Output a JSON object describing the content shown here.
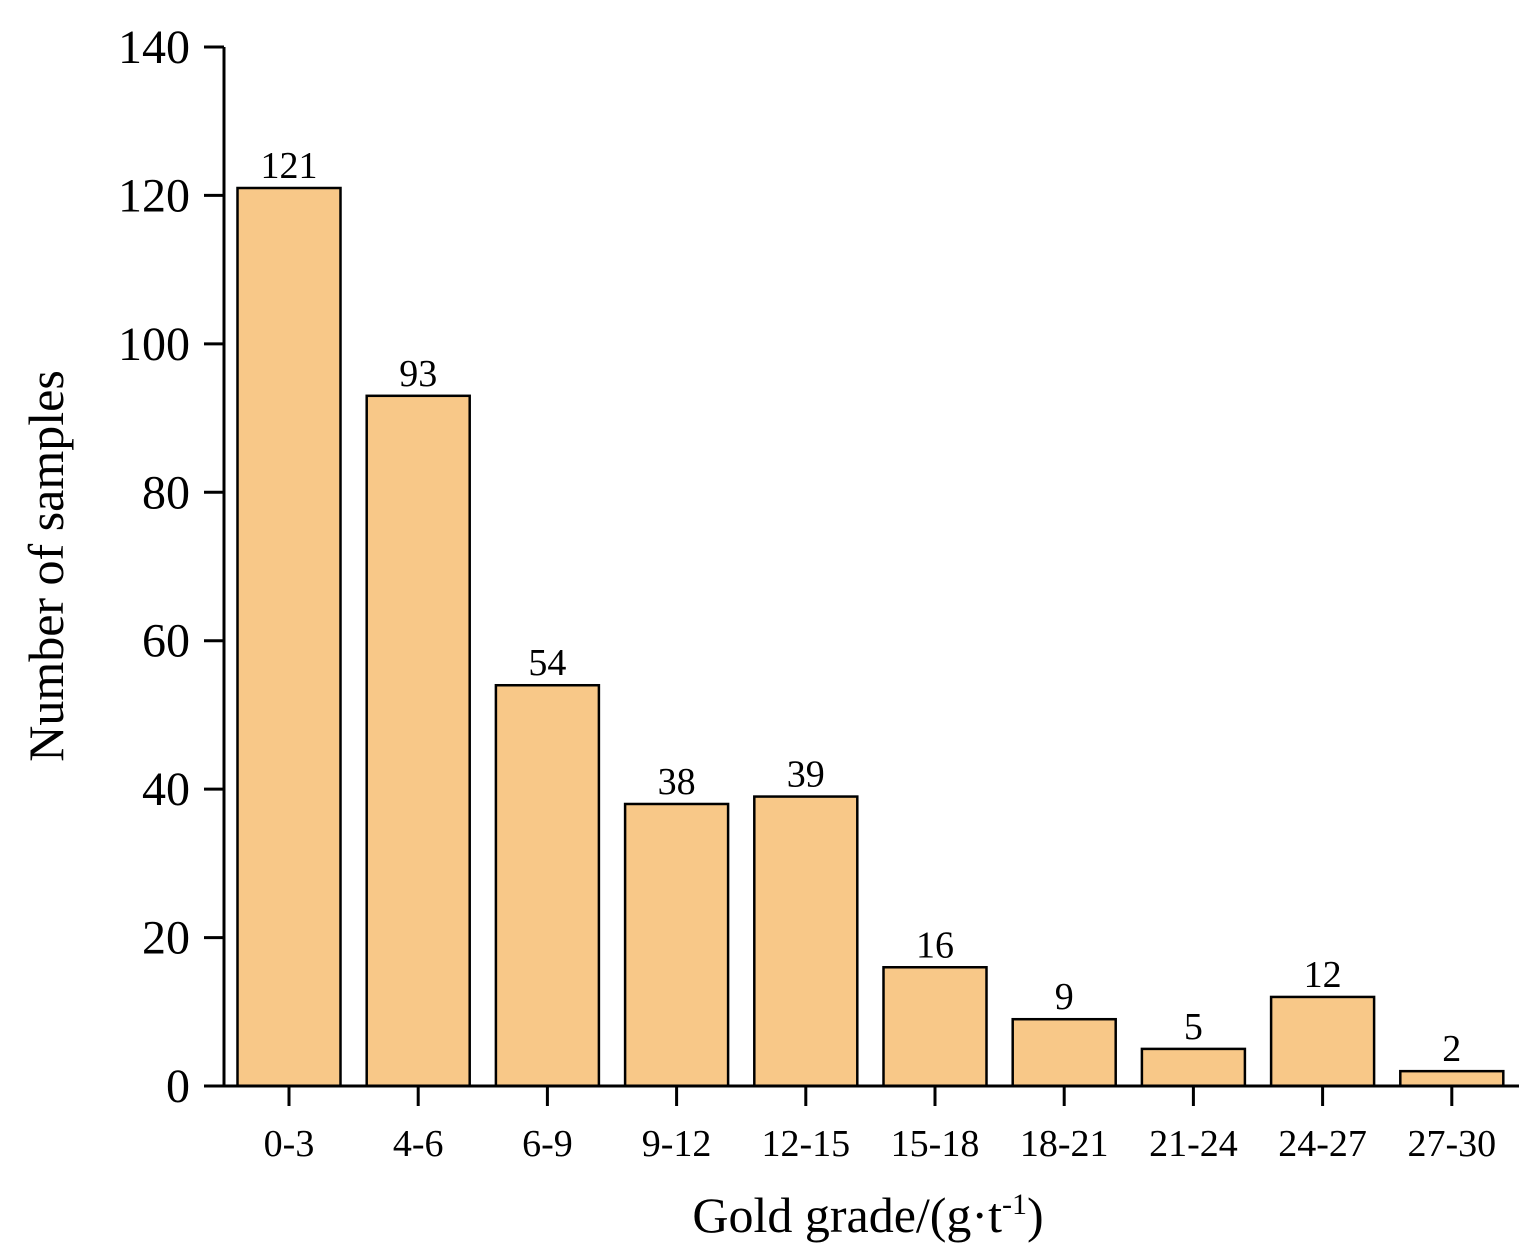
{
  "chart_data": {
    "type": "bar",
    "title": "",
    "xlabel_main": "Gold grade/(g·t",
    "xlabel_sup": "-1",
    "xlabel_close": ")",
    "ylabel": "Number of samples",
    "categories": [
      "0-3",
      "4-6",
      "6-9",
      "9-12",
      "12-15",
      "15-18",
      "18-21",
      "21-24",
      "24-27",
      "27-30"
    ],
    "values": [
      121,
      93,
      54,
      38,
      39,
      16,
      9,
      5,
      12,
      2
    ],
    "value_labels": [
      "121",
      "93",
      "54",
      "38",
      "39",
      "16",
      "9",
      "5",
      "12",
      "2"
    ],
    "ylim": [
      0,
      140
    ],
    "yticks": [
      0,
      20,
      40,
      60,
      80,
      100,
      120,
      140
    ],
    "ytick_labels": [
      "0",
      "20",
      "40",
      "60",
      "80",
      "100",
      "120",
      "140"
    ],
    "grid": false,
    "legend": "none",
    "bar_color": "#F8C888",
    "edge_color": "#000000"
  }
}
